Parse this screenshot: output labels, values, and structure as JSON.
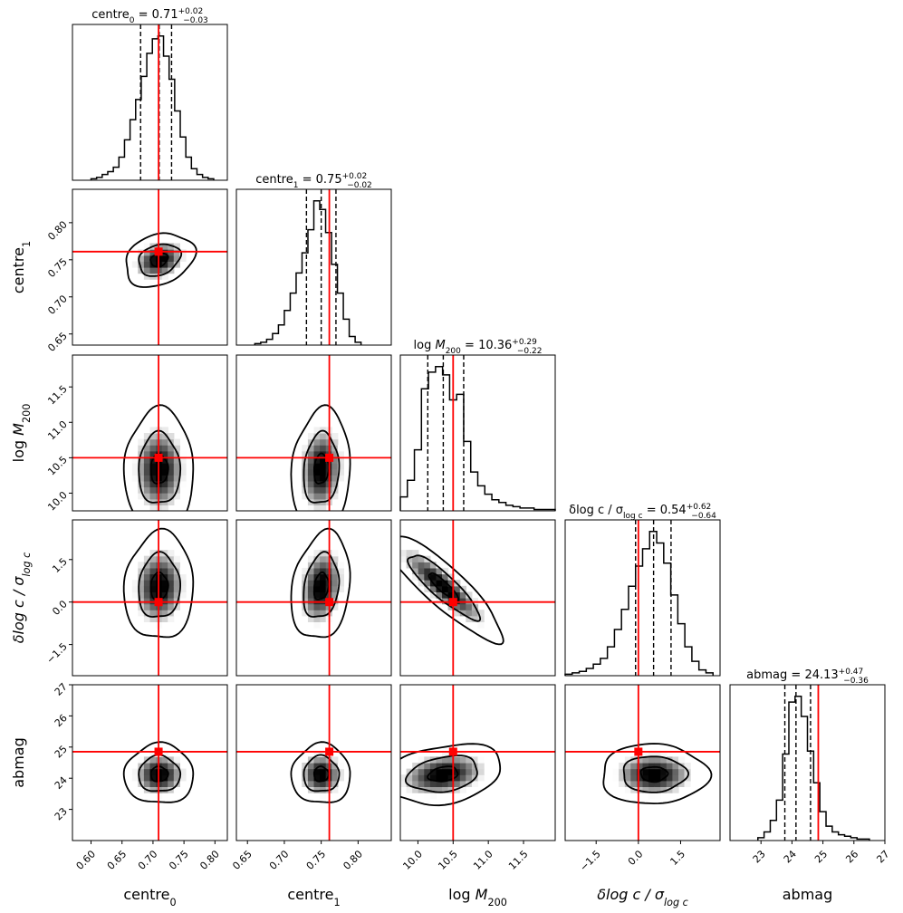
{
  "chart_data": {
    "type": "corner",
    "parameters": [
      {
        "key": "centre_0",
        "label": {
          "base": "centre",
          "sub": "0",
          "italic": false,
          "prefix": ""
        },
        "range": [
          0.57,
          0.82
        ],
        "ticks": [
          0.6,
          0.65,
          0.7,
          0.75,
          0.8
        ],
        "tick_labels": [
          "0.60",
          "0.65",
          "0.70",
          "0.75",
          "0.80"
        ],
        "truth": 0.709,
        "median": 0.71,
        "quantiles": [
          0.68,
          0.71,
          0.73
        ],
        "title_value": "0.71",
        "title_plus": "+0.02",
        "title_minus": "−0.03",
        "hist": {
          "bins": [
            0.6,
            0.609,
            0.618,
            0.627,
            0.636,
            0.645,
            0.654,
            0.663,
            0.672,
            0.681,
            0.69,
            0.699,
            0.708,
            0.717,
            0.726,
            0.735,
            0.744,
            0.753,
            0.762,
            0.771,
            0.78,
            0.789,
            0.798
          ],
          "counts": [
            1,
            2,
            4,
            6,
            9,
            16,
            28,
            42,
            56,
            72,
            88,
            98,
            100,
            86,
            70,
            48,
            30,
            16,
            8,
            4,
            2,
            1
          ]
        }
      },
      {
        "key": "centre_1",
        "label": {
          "base": "centre",
          "sub": "1",
          "italic": false,
          "prefix": ""
        },
        "range": [
          0.635,
          0.845
        ],
        "ticks": [
          0.65,
          0.7,
          0.75,
          0.8
        ],
        "tick_labels": [
          "0.65",
          "0.70",
          "0.75",
          "0.80"
        ],
        "y_tick_labels": [
          "0.65",
          "0.70",
          "0.75",
          "0.80"
        ],
        "truth": 0.761,
        "median": 0.75,
        "quantiles": [
          0.73,
          0.75,
          0.77
        ],
        "title_value": "0.75",
        "title_plus": "+0.02",
        "title_minus": "−0.02",
        "hist": {
          "bins": [
            0.66,
            0.668,
            0.676,
            0.684,
            0.692,
            0.7,
            0.708,
            0.716,
            0.724,
            0.732,
            0.74,
            0.748,
            0.756,
            0.764,
            0.772,
            0.78,
            0.788,
            0.796,
            0.804
          ],
          "counts": [
            1,
            2,
            4,
            8,
            14,
            24,
            36,
            50,
            64,
            80,
            100,
            94,
            78,
            56,
            36,
            18,
            6,
            2
          ]
        }
      },
      {
        "key": "log_M200",
        "label": {
          "base": "M",
          "sub": "200",
          "italic": true,
          "prefix": "log "
        },
        "range": [
          9.75,
          11.95
        ],
        "ticks": [
          10.0,
          10.5,
          11.0,
          11.5
        ],
        "tick_labels": [
          "10.0",
          "10.5",
          "11.0",
          "11.5"
        ],
        "truth": 10.5,
        "median": 10.36,
        "quantiles": [
          10.14,
          10.36,
          10.65
        ],
        "title_value": "10.36",
        "title_plus": "+0.29",
        "title_minus": "−0.22",
        "hist": {
          "bins": [
            9.75,
            9.85,
            9.95,
            10.05,
            10.15,
            10.25,
            10.35,
            10.45,
            10.55,
            10.65,
            10.75,
            10.85,
            10.95,
            11.05,
            11.15,
            11.25,
            11.35,
            11.45,
            11.55,
            11.65,
            11.75,
            11.85,
            11.95
          ],
          "counts": [
            10,
            22,
            44,
            88,
            100,
            104,
            98,
            80,
            84,
            50,
            28,
            18,
            12,
            8,
            6,
            4,
            3,
            2,
            2,
            1,
            1,
            1
          ]
        }
      },
      {
        "key": "dlogc",
        "label": {
          "base": "δlog c / σ",
          "sub": "log c",
          "italic": true,
          "prefix": ""
        },
        "range": [
          -2.6,
          2.9
        ],
        "ticks": [
          -1.5,
          0.0,
          1.5
        ],
        "tick_labels": [
          "−1.5",
          "0.0",
          "1.5"
        ],
        "truth": 0.0,
        "median": 0.54,
        "quantiles": [
          -0.1,
          0.54,
          1.16
        ],
        "title_value": "0.54",
        "title_plus": "+0.62",
        "title_minus": "−0.64",
        "hist": {
          "bins": [
            -2.6,
            -2.35,
            -2.1,
            -1.85,
            -1.6,
            -1.35,
            -1.1,
            -0.85,
            -0.6,
            -0.35,
            -0.1,
            0.15,
            0.4,
            0.65,
            0.9,
            1.15,
            1.4,
            1.65,
            1.9,
            2.15,
            2.4,
            2.65
          ],
          "counts": [
            1,
            2,
            3,
            5,
            8,
            12,
            20,
            32,
            46,
            62,
            76,
            88,
            100,
            92,
            78,
            56,
            36,
            20,
            10,
            4,
            2
          ]
        }
      },
      {
        "key": "abmag",
        "label": {
          "base": "abmag",
          "sub": "",
          "italic": false,
          "prefix": ""
        },
        "range": [
          22.0,
          27.0
        ],
        "ticks": [
          23,
          24,
          25,
          26,
          27
        ],
        "tick_labels": [
          "23",
          "24",
          "25",
          "26",
          "27"
        ],
        "truth": 24.85,
        "median": 24.13,
        "quantiles": [
          23.77,
          24.13,
          24.6
        ],
        "title_value": "24.13",
        "title_plus": "+0.47",
        "title_minus": "−0.36",
        "hist": {
          "bins": [
            22.9,
            23.1,
            23.3,
            23.5,
            23.7,
            23.9,
            24.1,
            24.3,
            24.5,
            24.7,
            24.9,
            25.1,
            25.3,
            25.5,
            25.7,
            25.9,
            26.1,
            26.3,
            26.5
          ],
          "counts": [
            2,
            6,
            14,
            28,
            60,
            96,
            100,
            86,
            62,
            40,
            20,
            10,
            6,
            4,
            3,
            2,
            1,
            1
          ]
        }
      }
    ],
    "pairs": [
      {
        "x": "centre_0",
        "y": "centre_1",
        "center": [
          0.71,
          0.75
        ],
        "sigma": [
          0.028,
          0.018
        ],
        "rho": 0.25
      },
      {
        "x": "centre_0",
        "y": "log_M200",
        "center": [
          0.71,
          10.34
        ],
        "sigma": [
          0.028,
          0.42
        ],
        "rho": 0.0
      },
      {
        "x": "centre_1",
        "y": "log_M200",
        "center": [
          0.75,
          10.34
        ],
        "sigma": [
          0.02,
          0.42
        ],
        "rho": 0.1
      },
      {
        "x": "centre_0",
        "y": "dlogc",
        "center": [
          0.71,
          0.55
        ],
        "sigma": [
          0.028,
          0.95
        ],
        "rho": 0.05
      },
      {
        "x": "centre_1",
        "y": "dlogc",
        "center": [
          0.75,
          0.55
        ],
        "sigma": [
          0.02,
          0.95
        ],
        "rho": 0.2
      },
      {
        "x": "log_M200",
        "y": "dlogc",
        "center": [
          10.36,
          0.55
        ],
        "sigma": [
          0.42,
          0.95
        ],
        "rho": -0.88
      },
      {
        "x": "centre_0",
        "y": "abmag",
        "center": [
          0.71,
          24.13
        ],
        "sigma": [
          0.028,
          0.48
        ],
        "rho": 0.0
      },
      {
        "x": "centre_1",
        "y": "abmag",
        "center": [
          0.75,
          24.13
        ],
        "sigma": [
          0.02,
          0.48
        ],
        "rho": 0.0
      },
      {
        "x": "log_M200",
        "y": "abmag",
        "center": [
          10.36,
          24.13
        ],
        "sigma": [
          0.42,
          0.48
        ],
        "rho": 0.25
      },
      {
        "x": "dlogc",
        "y": "abmag",
        "center": [
          0.55,
          24.13
        ],
        "sigma": [
          0.95,
          0.48
        ],
        "rho": 0.0
      }
    ],
    "contour_levels_sigma": [
      0.5,
      1.2,
      2.0
    ],
    "truth_color": "#ff0000",
    "contour_color": "#000000",
    "quantile_line_style": "dashed"
  }
}
